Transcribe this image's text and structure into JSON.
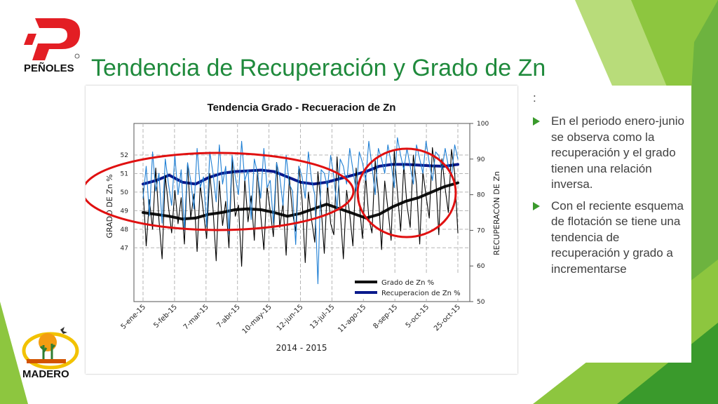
{
  "slide": {
    "title": "Tendencia de Recuperación y Grado de Zn",
    "colon": ":",
    "bullets": [
      "En el periodo enero-junio se observa como la recuperación y el grado tienen una relación inversa.",
      "Con el reciente esquema de flotación se tiene una tendencia de recuperación y grado a incrementarse"
    ],
    "logos": {
      "top": "PEÑOLES",
      "bottom": "MADERO"
    },
    "colors": {
      "title": "#1f8a3c",
      "accent_green": "#8dc63f",
      "dark_green": "#3a9a2c",
      "logo_red": "#e31e24"
    }
  },
  "chart_data": {
    "type": "line",
    "title": "Tendencia  Grado - Recueracion de Zn",
    "xlabel": "2014 - 2015",
    "ylabel_left": "GRADO DE Zn %",
    "ylabel_right": "RECUPERACÓN DE Zn",
    "y_left_ticks": [
      47,
      48,
      49,
      50,
      51,
      52
    ],
    "y_left_range": [
      44.1,
      53.7
    ],
    "y_right_ticks": [
      50,
      60,
      70,
      80,
      90,
      100
    ],
    "y_right_range": [
      50,
      100
    ],
    "x_tick_labels": [
      "5-ene-15",
      "5-feb-15",
      "7-mar-15",
      "7-abr-15",
      "10-may-15",
      "12-jun-15",
      "13-jul-15",
      "11-ago-15",
      "8-sep-15",
      "5-oct-15",
      "25-oct-15"
    ],
    "grid": true,
    "legend": {
      "placement": "bottom-right",
      "entries": [
        "Grado de Zn %",
        "Recuperacion de Zn %"
      ]
    },
    "series": [
      {
        "name": "Grado de Zn %",
        "axis": "left",
        "color": "#111111",
        "style": "trend",
        "values": [
          48.9,
          48.8,
          48.7,
          48.55,
          48.6,
          48.8,
          48.9,
          49.05,
          49.1,
          49.05,
          48.9,
          48.7,
          48.85,
          49.1,
          49.35,
          49.1,
          48.85,
          48.6,
          48.8,
          49.2,
          49.5,
          49.7,
          50.0,
          50.3,
          50.5
        ]
      },
      {
        "name": "Recuperacion de Zn %",
        "axis": "right",
        "color": "#0a1a8c",
        "style": "trend",
        "values": [
          83.0,
          84.0,
          85.5,
          83.5,
          83.0,
          84.8,
          86.0,
          86.5,
          86.7,
          86.9,
          86.5,
          85.0,
          83.5,
          83.0,
          83.5,
          84.5,
          85.5,
          86.5,
          88.0,
          88.5,
          88.5,
          88.3,
          88.1,
          88.0,
          88.5
        ]
      },
      {
        "name": "",
        "axis": "left",
        "color": "#000000",
        "style": "daily",
        "values": [
          50.2,
          47.1,
          49.6,
          48.0,
          51.3,
          48.5,
          46.4,
          50.9,
          49.2,
          47.8,
          50.1,
          48.3,
          49.7,
          47.2,
          51.5,
          48.6,
          49.9,
          46.8,
          50.4,
          48.9,
          47.5,
          51.0,
          49.1,
          46.3,
          50.6,
          48.2,
          49.5,
          47.0,
          51.8,
          48.7,
          49.3,
          46.0,
          50.7,
          48.4,
          49.8,
          47.4,
          51.2,
          48.8,
          46.9,
          50.3,
          49.0,
          47.6,
          51.6,
          48.1,
          49.4,
          46.6,
          50.8,
          48.9,
          47.9,
          51.4,
          49.6,
          46.2,
          50.0,
          48.5,
          47.3,
          51.1,
          49.2,
          46.7,
          50.5,
          48.3,
          47.7,
          51.9,
          49.0,
          46.4,
          50.1,
          48.8,
          47.1,
          51.3,
          49.4,
          47.5,
          50.9,
          48.6,
          47.8,
          51.7,
          49.9,
          46.9,
          50.6,
          49.1,
          47.4,
          52.2,
          50.0,
          47.9,
          51.5,
          49.3,
          48.1,
          52.0,
          50.4,
          47.2,
          51.1,
          49.8,
          48.6,
          52.4,
          50.9,
          47.7,
          51.8,
          50.2,
          48.9,
          52.3,
          51.0,
          47.8
        ]
      },
      {
        "name": "",
        "axis": "right",
        "color": "#1f7fd4",
        "style": "daily",
        "values": [
          79,
          88,
          74,
          92,
          81,
          86,
          72,
          90,
          83,
          77,
          91,
          80,
          87,
          70,
          89,
          84,
          76,
          93,
          82,
          85,
          71,
          92,
          86,
          78,
          94,
          83,
          88,
          69,
          91,
          85,
          80,
          95,
          84,
          87,
          73,
          90,
          86,
          79,
          93,
          82,
          84,
          72,
          89,
          85,
          77,
          91,
          83,
          81,
          66,
          88,
          85,
          79,
          92,
          84,
          80,
          55,
          87,
          86,
          82,
          91,
          85,
          76,
          90,
          88,
          83,
          93,
          87,
          81,
          92,
          89,
          84,
          95,
          88,
          80,
          93,
          90,
          86,
          94,
          89,
          82,
          96,
          91,
          87,
          93,
          88,
          83,
          94,
          90,
          86,
          95,
          89,
          84,
          92,
          91,
          87,
          93,
          88,
          85,
          94,
          90
        ]
      }
    ]
  }
}
